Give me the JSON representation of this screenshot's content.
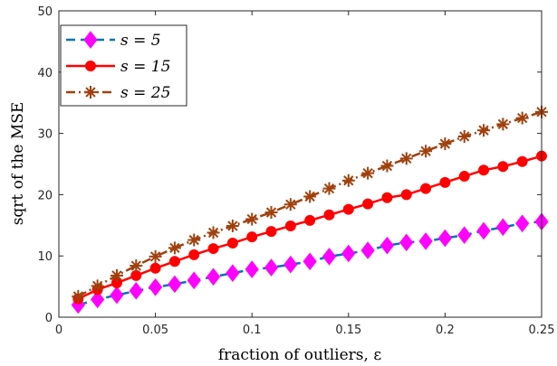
{
  "chart_data": {
    "type": "line",
    "xlabel": "fraction of outliers, ε",
    "ylabel": "sqrt of the MSE",
    "xlim": [
      0,
      0.25
    ],
    "ylim": [
      0,
      50
    ],
    "xticks": [
      0,
      0.05,
      0.1,
      0.15,
      0.2,
      0.25
    ],
    "xtick_labels": [
      "0",
      "0.05",
      "0.1",
      "0.15",
      "0.2",
      "0.25"
    ],
    "yticks": [
      0,
      10,
      20,
      30,
      40,
      50
    ],
    "ytick_labels": [
      "0",
      "10",
      "20",
      "30",
      "40",
      "50"
    ],
    "grid": false,
    "legend_position": "top-left",
    "x": [
      0.01,
      0.02,
      0.03,
      0.04,
      0.05,
      0.06,
      0.07,
      0.08,
      0.09,
      0.1,
      0.11,
      0.12,
      0.13,
      0.14,
      0.15,
      0.16,
      0.17,
      0.18,
      0.19,
      0.2,
      0.21,
      0.22,
      0.23,
      0.24,
      0.25
    ],
    "series": [
      {
        "name": "s = 5",
        "line_color": "#0072BD",
        "marker_color": "#FF00FF",
        "marker": "diamond",
        "line_style": "dashed",
        "values": [
          2.0,
          2.9,
          3.6,
          4.3,
          4.9,
          5.4,
          6.0,
          6.6,
          7.2,
          7.8,
          8.1,
          8.6,
          9.1,
          9.9,
          10.4,
          10.9,
          11.7,
          12.2,
          12.4,
          12.9,
          13.4,
          14.1,
          14.7,
          15.3,
          15.6
        ]
      },
      {
        "name": "s = 15",
        "line_color": "#FF0000",
        "marker_color": "#FF0000",
        "marker": "circle",
        "line_style": "solid",
        "values": [
          3.0,
          4.5,
          5.6,
          6.8,
          8.0,
          9.1,
          10.2,
          11.2,
          12.1,
          13.1,
          14.0,
          14.9,
          15.8,
          16.7,
          17.6,
          18.5,
          19.5,
          20.0,
          21.0,
          22.0,
          23.0,
          24.0,
          24.6,
          25.4,
          26.3
        ]
      },
      {
        "name": "s = 25",
        "line_color": "#A0410D",
        "marker_color": "#A0410D",
        "marker": "asterisk",
        "line_style": "dash-dot",
        "values": [
          3.4,
          5.1,
          6.8,
          8.4,
          9.9,
          11.3,
          12.6,
          13.8,
          14.9,
          16.0,
          17.1,
          18.4,
          19.7,
          21.0,
          22.3,
          23.5,
          24.7,
          25.9,
          27.1,
          28.3,
          29.5,
          30.5,
          31.5,
          32.5,
          33.5
        ]
      }
    ]
  }
}
